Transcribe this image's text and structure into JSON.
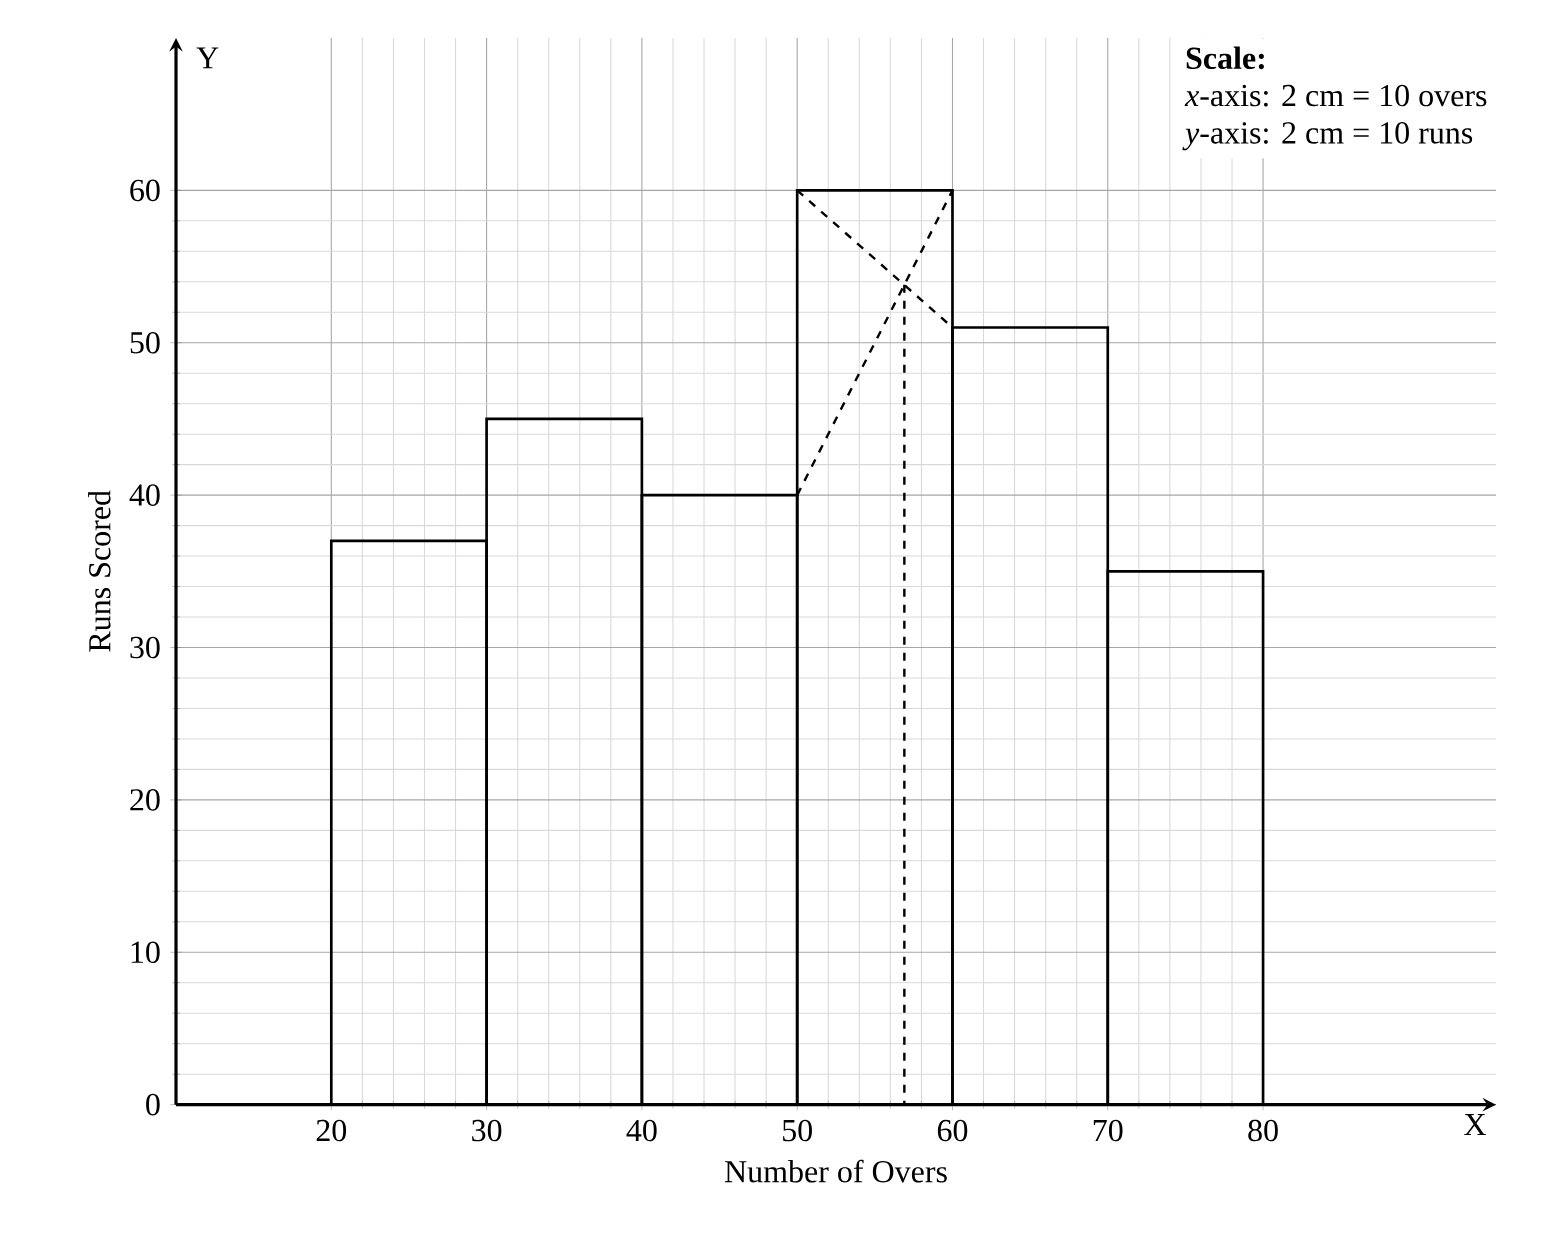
{
  "chart_data": {
    "type": "histogram",
    "xlabel": "Number of Overs",
    "ylabel": "Runs Scored",
    "annotations": [
      "Scale:",
      "*x*-axis: 2 cm = 10 overs",
      "*y*-axis: 2 cm = 10 runs",
      "X",
      "Y"
    ],
    "xlim": [
      10,
      95
    ],
    "ylim": [
      0,
      70
    ],
    "xticks": [
      20,
      30,
      40,
      50,
      60,
      70,
      80
    ],
    "yticks": [
      0,
      10,
      20,
      30,
      40,
      50,
      60
    ],
    "grid": true,
    "series": [
      {
        "color": "#000000",
        "bins": [
          20,
          30,
          40,
          50,
          60,
          70,
          80
        ],
        "values": [
          37,
          45,
          40,
          60,
          51,
          35
        ]
      },
      {
        "type": "line",
        "color": "#000000",
        "line_style": "dashed",
        "marker": "none",
        "x": [
          50,
          60
        ],
        "values": [
          40,
          60
        ]
      },
      {
        "type": "line",
        "color": "#000000",
        "line_style": "dashed",
        "marker": "none",
        "x": [
          50,
          60
        ],
        "values": [
          60,
          51
        ]
      },
      {
        "type": "line",
        "color": "#000000",
        "line_style": "dashed",
        "marker": "none",
        "x": [
          56.9,
          56.9
        ],
        "values": [
          53.8,
          0
        ]
      }
    ]
  }
}
